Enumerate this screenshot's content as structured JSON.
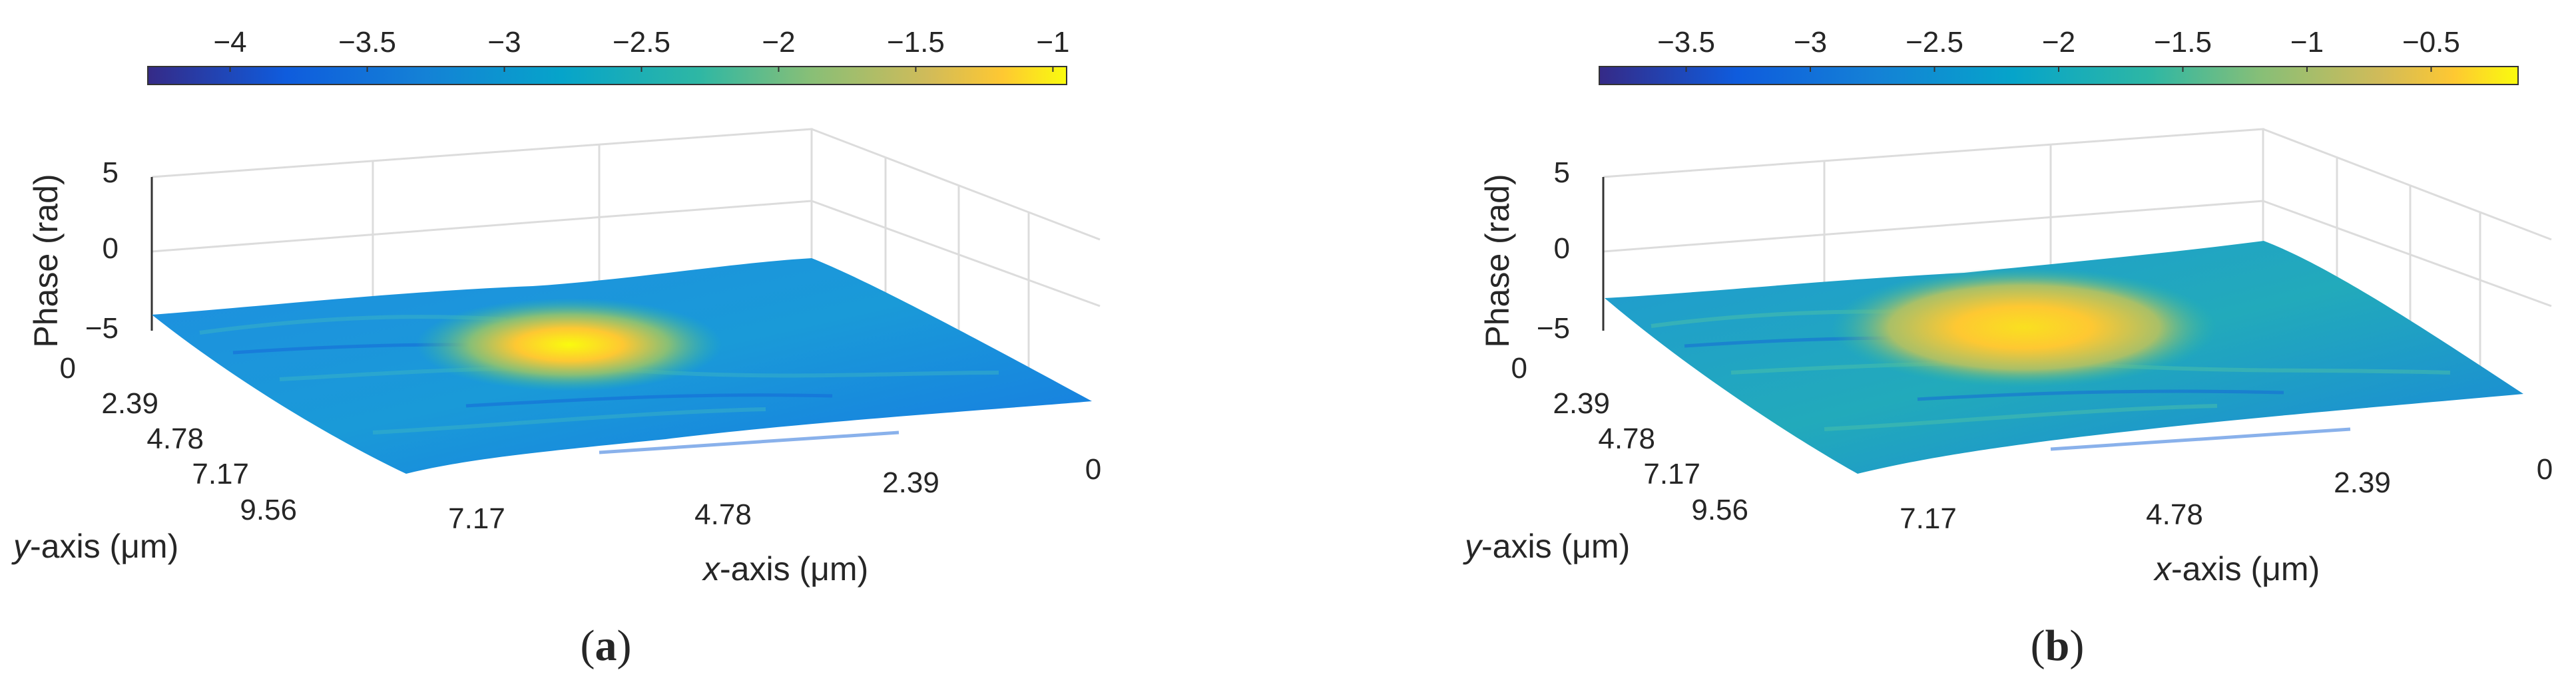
{
  "chart_data": [
    {
      "type": "surface",
      "panel_label": "a",
      "colormap": "parula",
      "colorbar": {
        "ticks": [
          -4,
          -3.5,
          -3,
          -2.5,
          -2,
          -1.5,
          -1
        ],
        "tick_labels": [
          "−4",
          "−3.5",
          "−3",
          "−2.5",
          "−2",
          "−1.5",
          "−1"
        ],
        "range": [
          -4.3,
          -0.95
        ]
      },
      "zlabel": "Phase (rad)",
      "xlabel_prefix": "x",
      "xlabel_suffix": "-axis (μm)",
      "ylabel_prefix": "y",
      "ylabel_suffix": "-axis (μm)",
      "zticks": [
        "5",
        "0",
        "−5"
      ],
      "xticks": [
        "7.17",
        "4.78",
        "2.39",
        "0"
      ],
      "yticks": [
        "0",
        "2.39",
        "4.78",
        "7.17",
        "9.56"
      ],
      "zlim": [
        -5,
        5
      ],
      "surface": {
        "background_phase": -3.3,
        "peak_phase": -1.0,
        "peak_position_xy_um": [
          5.0,
          4.5
        ]
      }
    },
    {
      "type": "surface",
      "panel_label": "b",
      "colormap": "parula",
      "colorbar": {
        "ticks": [
          -3.5,
          -3,
          -2.5,
          -2,
          -1.5,
          -1,
          -0.5
        ],
        "tick_labels": [
          "−3.5",
          "−3",
          "−2.5",
          "−2",
          "−1.5",
          "−1",
          "−0.5"
        ],
        "range": [
          -3.85,
          -0.15
        ]
      },
      "zlabel": "Phase (rad)",
      "xlabel_prefix": "x",
      "xlabel_suffix": "-axis (μm)",
      "ylabel_prefix": "y",
      "ylabel_suffix": "-axis (μm)",
      "zticks": [
        "5",
        "0",
        "−5"
      ],
      "xticks": [
        "7.17",
        "4.78",
        "2.39",
        "0"
      ],
      "yticks": [
        "0",
        "2.39",
        "4.78",
        "7.17",
        "9.56"
      ],
      "zlim": [
        -5,
        5
      ],
      "surface": {
        "background_phase": -2.6,
        "peak_phase": -0.6,
        "peak_position_xy_um": [
          5.0,
          4.8
        ]
      }
    }
  ]
}
